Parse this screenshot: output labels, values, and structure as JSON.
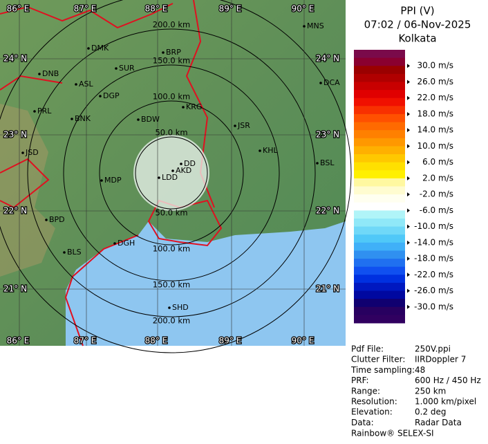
{
  "header": {
    "product": "PPI (V)",
    "time": "07:02 / 06-Nov-2025",
    "station": "Kolkata"
  },
  "map": {
    "longitudes": [
      "86° E",
      "87° E",
      "88° E",
      "89° E",
      "90° E"
    ],
    "latitudes": [
      "24° N",
      "23° N",
      "22° N",
      "21° N"
    ],
    "rings": [
      "50.0 km",
      "100.0 km",
      "150.0 km",
      "200.0 km"
    ],
    "cities": [
      "MNS",
      "DMK",
      "BRP",
      "DNB",
      "SUR",
      "ASL",
      "DGP",
      "DCA",
      "PRL",
      "KRG",
      "BNK",
      "BDW",
      "JSR",
      "JSD",
      "KHL",
      "DD",
      "AKD",
      "BSL",
      "LDD",
      "MDP",
      "BPD",
      "DGH",
      "BLS",
      "SHD"
    ]
  },
  "legend": {
    "labels": [
      "30.0 m/s",
      "26.0 m/s",
      "22.0 m/s",
      "18.0 m/s",
      "14.0 m/s",
      "10.0 m/s",
      "6.0 m/s",
      "2.0 m/s",
      "-2.0 m/s",
      "-6.0 m/s",
      "-10.0 m/s",
      "-14.0 m/s",
      "-18.0 m/s",
      "-22.0 m/s",
      "-26.0 m/s",
      "-30.0 m/s"
    ],
    "colors": [
      "#7a0a4a",
      "#8a0030",
      "#9a0000",
      "#b00000",
      "#c80000",
      "#e00000",
      "#f01000",
      "#f83000",
      "#ff5000",
      "#ff6a00",
      "#ff8000",
      "#ff9800",
      "#ffb000",
      "#ffc800",
      "#ffe000",
      "#fff000",
      "#fff8a0",
      "#fffcd0",
      "#fffff0",
      "#ffffff",
      "#b0f4f8",
      "#90e8f8",
      "#70d8f8",
      "#50c8f8",
      "#40b0f8",
      "#3090f0",
      "#2070f0",
      "#1050f0",
      "#0030e0",
      "#0018c0",
      "#0008a0",
      "#100070",
      "#280060",
      "#300060"
    ]
  },
  "info": {
    "rows": [
      [
        "Pdf File:",
        "250V.ppi"
      ],
      [
        "Clutter Filter:",
        "IIRDoppler 7"
      ],
      [
        "Time sampling:",
        "48"
      ],
      [
        "PRF:",
        "600 Hz / 450 Hz"
      ],
      [
        "Range:",
        "250 km"
      ],
      [
        "Resolution:",
        "1.000 km/pixel"
      ],
      [
        "Elevation:",
        "0.2 deg"
      ],
      [
        "Data:",
        "Radar Data"
      ]
    ],
    "footer": "Rainbow® SELEX-SI"
  }
}
